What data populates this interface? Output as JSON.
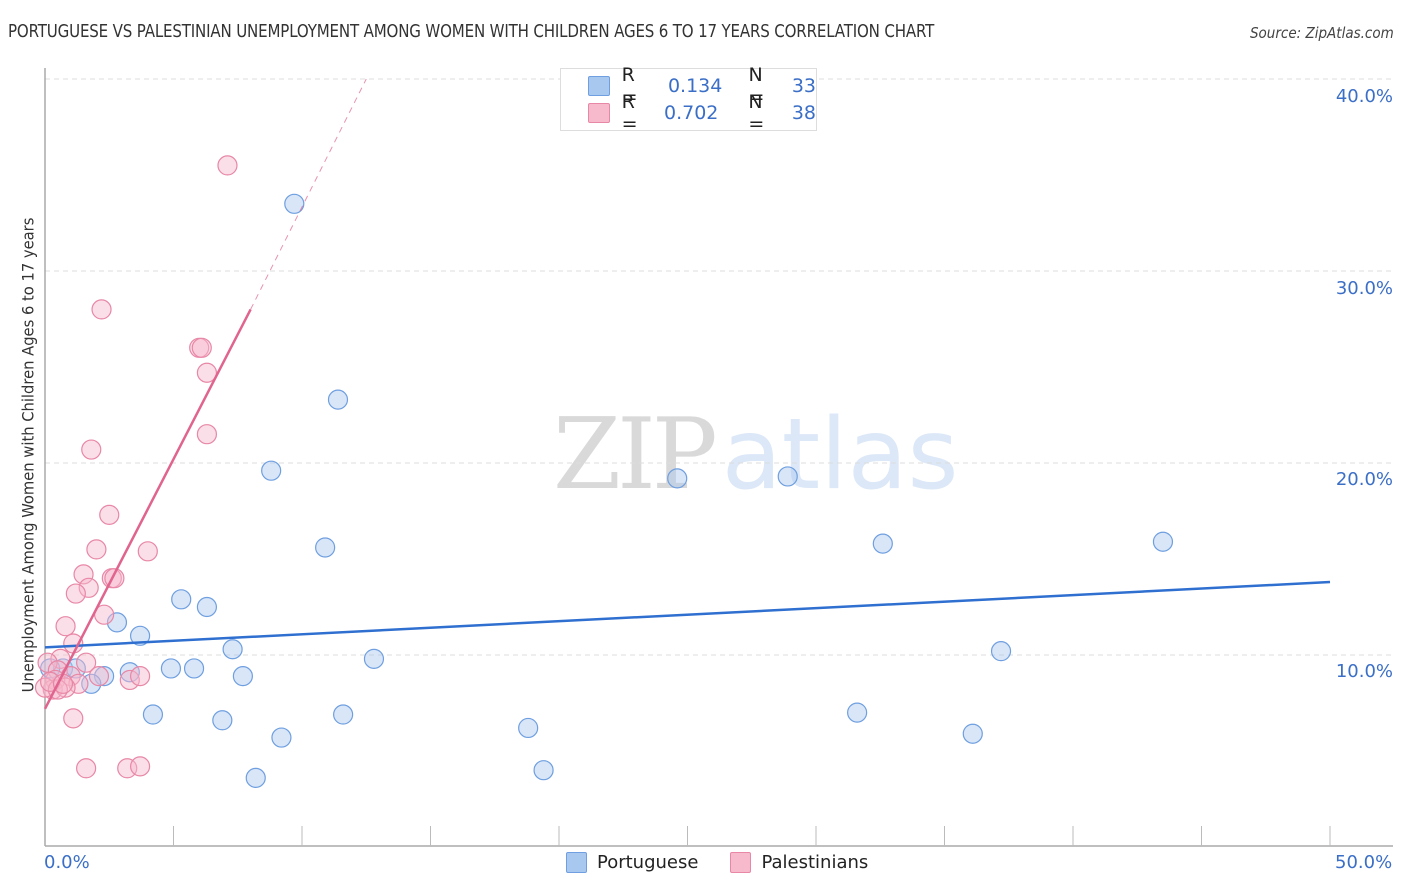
{
  "header": {
    "title": "PORTUGUESE VS PALESTINIAN UNEMPLOYMENT AMONG WOMEN WITH CHILDREN AGES 6 TO 17 YEARS CORRELATION CHART",
    "source": "Source: ZipAtlas.com"
  },
  "legend": {
    "rows": [
      {
        "series": "Portuguese",
        "r_label": "R =",
        "r_value": "0.134",
        "n_label": "N =",
        "n_value": "33",
        "color": "#a8c8f0",
        "border": "#6f9fe0"
      },
      {
        "series": "Palestinians",
        "r_label": "R =",
        "r_value": "0.702",
        "n_label": "N =",
        "n_value": "38",
        "color": "#f7b9cc",
        "border": "#e887a6"
      }
    ],
    "bottom": [
      "Portuguese",
      "Palestinians"
    ]
  },
  "axes": {
    "ylabel": "Unemployment Among Women with Children Ages 6 to 17 years",
    "y_ticks": [
      "40.0%",
      "30.0%",
      "20.0%",
      "10.0%"
    ],
    "x_ticks": [
      "0.0%",
      "50.0%"
    ]
  },
  "watermark": {
    "zip": "ZIP",
    "atlas": "atlas"
  },
  "colors": {
    "portuguese_line": "#2f6fd0",
    "palestinian_line": "#e0648e",
    "tick_text": "#3b6fc7",
    "grid": "#dddddd"
  },
  "chart_data": {
    "type": "scatter",
    "title": "PORTUGUESE VS PALESTINIAN UNEMPLOYMENT AMONG WOMEN WITH CHILDREN AGES 6 TO 17 YEARS CORRELATION CHART",
    "xlabel": "",
    "ylabel": "Unemployment Among Women with Children Ages 6 to 17 years",
    "xlim": [
      0,
      50
    ],
    "ylim": [
      0,
      40
    ],
    "x_tick_labels": [
      "0.0%",
      "50.0%"
    ],
    "y_tick_labels": [
      "10.0%",
      "20.0%",
      "30.0%",
      "40.0%"
    ],
    "grid": true,
    "legend_position": "top-center and bottom",
    "series": [
      {
        "name": "Portuguese",
        "R": 0.134,
        "N": 33,
        "trendline": {
          "x": [
            0,
            50
          ],
          "y": [
            10.4,
            13.8
          ]
        },
        "points": [
          [
            9.7,
            33.5
          ],
          [
            11.4,
            23.3
          ],
          [
            8.8,
            19.6
          ],
          [
            24.6,
            19.2
          ],
          [
            28.9,
            19.3
          ],
          [
            10.9,
            15.6
          ],
          [
            32.6,
            15.8
          ],
          [
            43.5,
            15.9
          ],
          [
            5.3,
            12.9
          ],
          [
            6.3,
            12.5
          ],
          [
            2.8,
            11.7
          ],
          [
            3.7,
            11.0
          ],
          [
            7.3,
            10.3
          ],
          [
            12.8,
            9.8
          ],
          [
            37.2,
            10.2
          ],
          [
            0.7,
            9.3
          ],
          [
            1.2,
            9.3
          ],
          [
            3.3,
            9.1
          ],
          [
            4.9,
            9.3
          ],
          [
            5.8,
            9.3
          ],
          [
            7.7,
            8.9
          ],
          [
            2.3,
            8.9
          ],
          [
            1.8,
            8.5
          ],
          [
            4.2,
            6.9
          ],
          [
            6.9,
            6.6
          ],
          [
            11.6,
            6.9
          ],
          [
            31.6,
            7.0
          ],
          [
            9.2,
            5.7
          ],
          [
            18.8,
            6.2
          ],
          [
            36.1,
            5.9
          ],
          [
            19.4,
            4.0
          ],
          [
            8.2,
            3.6
          ],
          [
            0.2,
            9.3
          ]
        ]
      },
      {
        "name": "Palestinians",
        "R": 0.702,
        "N": 38,
        "trendline": {
          "x": [
            0,
            8.0
          ],
          "y": [
            7.2,
            28.0
          ],
          "dashed_extension_to": [
            12.5,
            40.0
          ]
        },
        "points": [
          [
            7.1,
            35.5
          ],
          [
            2.2,
            28.0
          ],
          [
            6.0,
            26.0
          ],
          [
            6.1,
            26.0
          ],
          [
            6.3,
            24.7
          ],
          [
            6.3,
            21.5
          ],
          [
            1.8,
            20.7
          ],
          [
            2.5,
            17.3
          ],
          [
            2.0,
            15.5
          ],
          [
            4.0,
            15.4
          ],
          [
            1.5,
            14.2
          ],
          [
            2.6,
            14.0
          ],
          [
            2.7,
            14.0
          ],
          [
            1.7,
            13.5
          ],
          [
            1.2,
            13.2
          ],
          [
            2.3,
            12.1
          ],
          [
            0.8,
            11.5
          ],
          [
            1.1,
            10.6
          ],
          [
            0.6,
            9.8
          ],
          [
            1.6,
            9.6
          ],
          [
            0.1,
            9.6
          ],
          [
            0.5,
            9.2
          ],
          [
            1.0,
            8.9
          ],
          [
            0.4,
            8.7
          ],
          [
            0.3,
            8.2
          ],
          [
            2.1,
            8.9
          ],
          [
            3.3,
            8.7
          ],
          [
            3.7,
            8.9
          ],
          [
            1.3,
            8.5
          ],
          [
            0.0,
            8.3
          ],
          [
            0.8,
            8.3
          ],
          [
            1.1,
            6.7
          ],
          [
            1.6,
            4.1
          ],
          [
            3.2,
            4.1
          ],
          [
            3.7,
            4.2
          ],
          [
            0.5,
            8.2
          ],
          [
            0.2,
            8.6
          ],
          [
            0.7,
            8.5
          ]
        ]
      }
    ]
  }
}
